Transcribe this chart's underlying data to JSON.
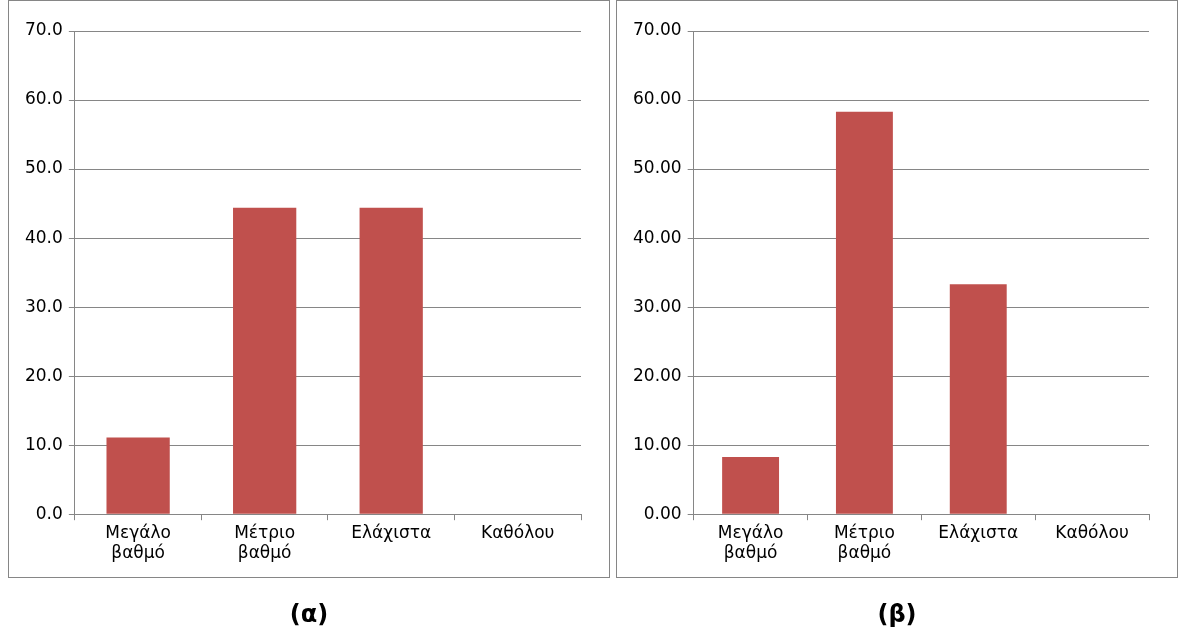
{
  "chart_data": [
    {
      "type": "bar",
      "title": "(α)",
      "categories": [
        "Μεγάλο βαθμό",
        "Μέτριο βαθμό",
        "Ελάχιστα",
        "Καθόλου"
      ],
      "values": [
        11.1,
        44.4,
        44.4,
        0
      ],
      "color": "#c0504d",
      "ylim": [
        0,
        70
      ],
      "yticks": [
        {
          "value": 0,
          "label": "0.0"
        },
        {
          "value": 10,
          "label": "10.0"
        },
        {
          "value": 20,
          "label": "20.0"
        },
        {
          "value": 30,
          "label": "30.0"
        },
        {
          "value": 40,
          "label": "40.0"
        },
        {
          "value": 50,
          "label": "50.0"
        },
        {
          "value": 60,
          "label": "60.0"
        },
        {
          "value": 70,
          "label": "70.0"
        }
      ],
      "grid": "y"
    },
    {
      "type": "bar",
      "title": "(β)",
      "categories": [
        "Μεγάλο βαθμό",
        "Μέτριο βαθμό",
        "Ελάχιστα",
        "Καθόλου"
      ],
      "values": [
        8.3,
        58.3,
        33.3,
        0
      ],
      "color": "#c0504d",
      "ylim": [
        0,
        70
      ],
      "yticks": [
        {
          "value": 0,
          "label": "0.00"
        },
        {
          "value": 10,
          "label": "10.00"
        },
        {
          "value": 20,
          "label": "20.00"
        },
        {
          "value": 30,
          "label": "30.00"
        },
        {
          "value": 40,
          "label": "40.00"
        },
        {
          "value": 50,
          "label": "50.00"
        },
        {
          "value": 60,
          "label": "60.00"
        },
        {
          "value": 70,
          "label": "70.00"
        }
      ],
      "grid": "y"
    }
  ]
}
